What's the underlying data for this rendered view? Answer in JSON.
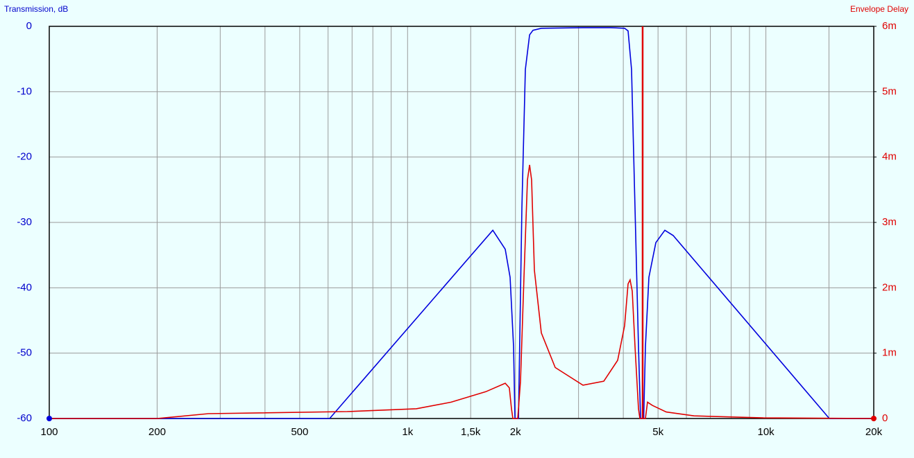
{
  "chart_data": {
    "type": "line",
    "y_label": "Transmission, dB",
    "y2_label": "Envelope Delay",
    "xscale": "log",
    "grid": true,
    "xlim": [
      100,
      20000
    ],
    "xticks": [
      100,
      200,
      500,
      {
        "value": 1000,
        "label": "1k"
      },
      {
        "value": 1500,
        "label": "1,5k"
      },
      {
        "value": 2000,
        "label": "2k"
      },
      {
        "value": 5000,
        "label": "5k"
      },
      {
        "value": 10000,
        "label": "10k"
      },
      {
        "value": 20000,
        "label": "20k"
      }
    ],
    "xminor": [
      300,
      400,
      600,
      700,
      800,
      900,
      3000,
      4000,
      6000,
      7000,
      8000,
      9000,
      15000
    ],
    "ylim": [
      -60,
      0
    ],
    "yticks": [
      0,
      -10,
      -20,
      -30,
      -40,
      -50,
      -60
    ],
    "y2lim": [
      0,
      0.006
    ],
    "y2ticks": [
      0,
      {
        "value": 0.001,
        "label": "1m"
      },
      {
        "value": 0.002,
        "label": "2m"
      },
      {
        "value": 0.003,
        "label": "3m"
      },
      {
        "value": 0.004,
        "label": "4m"
      },
      {
        "value": 0.005,
        "label": "5m"
      },
      {
        "value": 0.006,
        "label": "6m"
      }
    ],
    "cursor_x": 4529,
    "cursor_color": "#e00000",
    "series": [
      {
        "name": "Transmission",
        "color": "#0000dd",
        "x": [
          100,
          606,
          1729,
          1873,
          1932,
          1976,
          1994,
          2040,
          2085,
          2132,
          2190,
          2239,
          2362,
          3086,
          3689,
          4033,
          4124,
          4217,
          4312,
          4410,
          4469,
          4560,
          4611,
          4714,
          4929,
          5224,
          5511,
          15032,
          20000
        ],
        "values": [
          -60,
          -60,
          -31.2,
          -34.1,
          -38.4,
          -49,
          -60,
          -60,
          -27.8,
          -6.6,
          -1.3,
          -0.6,
          -0.3,
          -0.2,
          -0.2,
          -0.3,
          -0.7,
          -6.6,
          -27.8,
          -49,
          -60,
          -60,
          -49,
          -38.4,
          -33.1,
          -31.2,
          -32,
          -60,
          -60
        ]
      },
      {
        "name": "Envelope Delay",
        "color": "#e00000",
        "axis": "y2",
        "x": [
          100,
          200,
          278,
          678,
          1058,
          1323,
          1653,
          1873,
          1923,
          1950,
          1967,
          2030,
          2066,
          2113,
          2160,
          2190,
          2219,
          2259,
          2362,
          2582,
          3086,
          3528,
          3858,
          4033,
          4124,
          4179,
          4236,
          4312,
          4410,
          4449,
          4611,
          4673,
          4821,
          5272,
          6300,
          9840,
          20000
        ],
        "values": [
          0,
          0,
          7.4e-05,
          0.000106,
          0.00015,
          0.00025,
          0.00041,
          0.00054,
          0.00047,
          0.00015,
          0,
          0,
          0.00057,
          0.00216,
          0.00365,
          0.00388,
          0.00365,
          0.00227,
          0.00131,
          0.00078,
          0.00051,
          0.00057,
          0.00089,
          0.00142,
          0.00206,
          0.00212,
          0.00195,
          0.0011,
          0.00015,
          0,
          0,
          0.00025,
          0.0002,
          0.0001,
          4e-05,
          1e-05,
          0
        ]
      }
    ]
  }
}
